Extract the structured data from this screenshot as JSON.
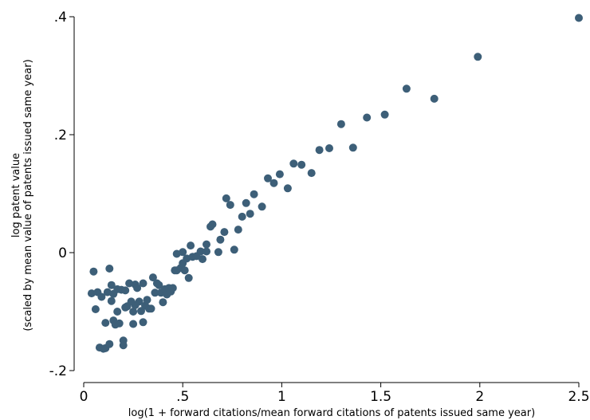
{
  "chart_data": {
    "type": "scatter",
    "title": "",
    "xlabel": "log(1 + forward citations/mean forward citations of patents issued same year)",
    "ylabel_line1": "log patent value",
    "ylabel_line2": "(scaled by mean value of patents issued same year)",
    "xlim": [
      0,
      2.5
    ],
    "ylim": [
      -0.2,
      0.4
    ],
    "xticks": [
      0,
      0.5,
      1,
      1.5,
      2,
      2.5
    ],
    "xtick_labels": [
      "0",
      ".5",
      "1",
      "1.5",
      "2",
      "2.5"
    ],
    "yticks": [
      -0.2,
      0,
      0.2,
      0.4
    ],
    "ytick_labels": [
      "-.2",
      "0",
      ".2",
      ".4"
    ],
    "grid": false,
    "marker_color": "#3d5f78",
    "series": [
      {
        "points": [
          [
            0.04,
            -0.069
          ],
          [
            0.05,
            -0.032
          ],
          [
            0.06,
            -0.096
          ],
          [
            0.07,
            -0.067
          ],
          [
            0.08,
            -0.161
          ],
          [
            0.09,
            -0.075
          ],
          [
            0.1,
            -0.163
          ],
          [
            0.11,
            -0.119
          ],
          [
            0.11,
            -0.162
          ],
          [
            0.12,
            -0.067
          ],
          [
            0.13,
            -0.027
          ],
          [
            0.13,
            -0.155
          ],
          [
            0.14,
            -0.082
          ],
          [
            0.14,
            -0.055
          ],
          [
            0.15,
            -0.115
          ],
          [
            0.15,
            -0.07
          ],
          [
            0.16,
            -0.122
          ],
          [
            0.17,
            -0.062
          ],
          [
            0.17,
            -0.1
          ],
          [
            0.18,
            -0.12
          ],
          [
            0.19,
            -0.063
          ],
          [
            0.2,
            -0.149
          ],
          [
            0.2,
            -0.157
          ],
          [
            0.21,
            -0.093
          ],
          [
            0.21,
            -0.064
          ],
          [
            0.22,
            -0.091
          ],
          [
            0.23,
            -0.052
          ],
          [
            0.24,
            -0.083
          ],
          [
            0.25,
            -0.121
          ],
          [
            0.25,
            -0.1
          ],
          [
            0.26,
            -0.089
          ],
          [
            0.26,
            -0.054
          ],
          [
            0.27,
            -0.06
          ],
          [
            0.28,
            -0.083
          ],
          [
            0.29,
            -0.099
          ],
          [
            0.3,
            -0.052
          ],
          [
            0.3,
            -0.118
          ],
          [
            0.31,
            -0.09
          ],
          [
            0.32,
            -0.08
          ],
          [
            0.33,
            -0.095
          ],
          [
            0.34,
            -0.095
          ],
          [
            0.35,
            -0.042
          ],
          [
            0.36,
            -0.068
          ],
          [
            0.37,
            -0.052
          ],
          [
            0.38,
            -0.055
          ],
          [
            0.39,
            -0.068
          ],
          [
            0.4,
            -0.084
          ],
          [
            0.41,
            -0.062
          ],
          [
            0.42,
            -0.071
          ],
          [
            0.43,
            -0.06
          ],
          [
            0.44,
            -0.066
          ],
          [
            0.45,
            -0.06
          ],
          [
            0.46,
            -0.03
          ],
          [
            0.47,
            -0.03
          ],
          [
            0.47,
            -0.002
          ],
          [
            0.49,
            -0.026
          ],
          [
            0.5,
            0.001
          ],
          [
            0.5,
            -0.018
          ],
          [
            0.51,
            -0.03
          ],
          [
            0.52,
            -0.01
          ],
          [
            0.53,
            -0.043
          ],
          [
            0.54,
            0.012
          ],
          [
            0.55,
            -0.007
          ],
          [
            0.57,
            -0.006
          ],
          [
            0.59,
            0.002
          ],
          [
            0.6,
            -0.011
          ],
          [
            0.62,
            0.002
          ],
          [
            0.62,
            0.014
          ],
          [
            0.64,
            0.044
          ],
          [
            0.65,
            0.048
          ],
          [
            0.68,
            0.001
          ],
          [
            0.69,
            0.022
          ],
          [
            0.71,
            0.035
          ],
          [
            0.72,
            0.092
          ],
          [
            0.74,
            0.081
          ],
          [
            0.76,
            0.005
          ],
          [
            0.78,
            0.039
          ],
          [
            0.8,
            0.061
          ],
          [
            0.82,
            0.084
          ],
          [
            0.84,
            0.066
          ],
          [
            0.86,
            0.099
          ],
          [
            0.9,
            0.078
          ],
          [
            0.93,
            0.126
          ],
          [
            0.96,
            0.118
          ],
          [
            0.99,
            0.133
          ],
          [
            1.03,
            0.109
          ],
          [
            1.06,
            0.151
          ],
          [
            1.1,
            0.149
          ],
          [
            1.15,
            0.135
          ],
          [
            1.19,
            0.174
          ],
          [
            1.24,
            0.177
          ],
          [
            1.3,
            0.218
          ],
          [
            1.36,
            0.178
          ],
          [
            1.43,
            0.229
          ],
          [
            1.52,
            0.234
          ],
          [
            1.63,
            0.278
          ],
          [
            1.77,
            0.261
          ],
          [
            1.99,
            0.332
          ],
          [
            2.5,
            0.398
          ]
        ]
      }
    ]
  }
}
